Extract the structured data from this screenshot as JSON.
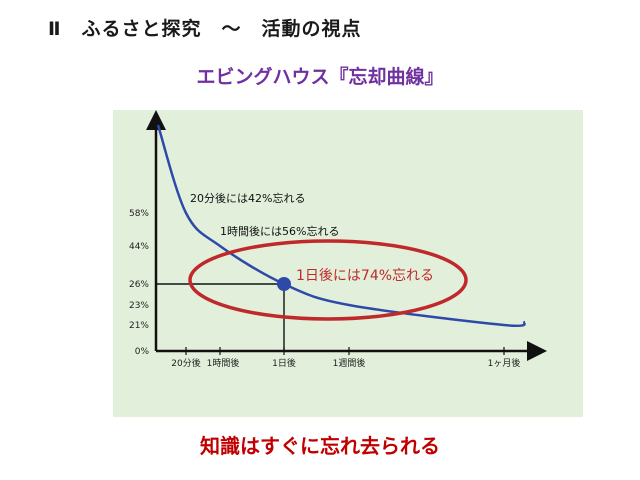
{
  "slide": {
    "title": "Ⅱ　ふるさと探究　～　活動の視点",
    "conclusion": "知識はすぐに忘れ去られる"
  },
  "colors": {
    "panel_bg": "#e2efda",
    "curve": "#2e4aa8",
    "ellipse": "#c0292b",
    "title_purple": "#7030a0",
    "conclusion_red": "#c00000"
  },
  "chart_data": {
    "type": "line",
    "title": "エビングハウス『忘却曲線』",
    "x_ticks": [
      "20分後",
      "1時間後",
      "1日後",
      "1週間後",
      "1ヶ月後"
    ],
    "y_ticks": [
      "0%",
      "21%",
      "23%",
      "26%",
      "44%",
      "58%"
    ],
    "series": [
      {
        "x": [
          "0分",
          "20分後",
          "1時間後",
          "1日後",
          "1週間後",
          "1ヶ月後"
        ],
        "y": [
          100,
          58,
          44,
          26,
          23,
          21
        ]
      }
    ],
    "highlight_point": {
      "x": "1日後",
      "y": 26
    },
    "annotations": [
      {
        "id": "a20min",
        "text": "20分後には42%忘れる"
      },
      {
        "id": "a1hour",
        "text": "1時間後には56%忘れる"
      },
      {
        "id": "a1day",
        "text": "1日後には74%忘れる"
      }
    ],
    "grid": false,
    "legend": "none"
  }
}
